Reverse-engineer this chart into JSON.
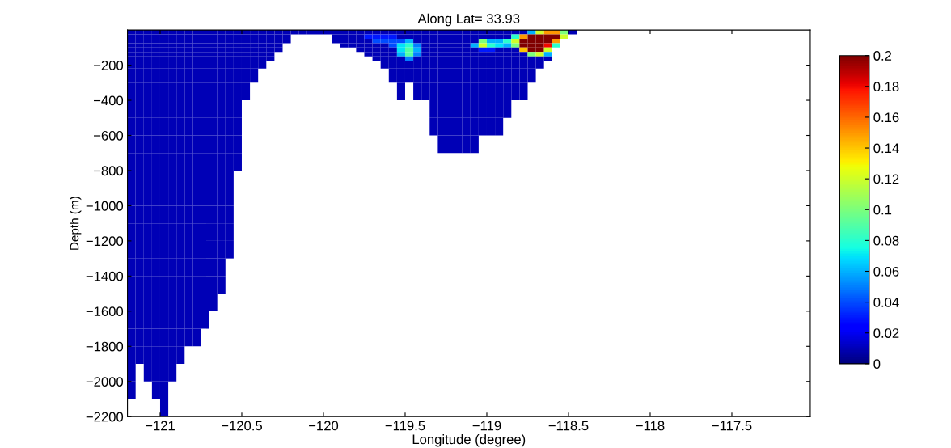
{
  "chart_data": {
    "type": "heatmap",
    "title": "Along Lat= 33.93",
    "xlabel": "Longitude (degree)",
    "ylabel": "Depth (m)",
    "x": [
      -121.175,
      -121.125,
      -121.075,
      -121.025,
      -120.975,
      -120.925,
      -120.875,
      -120.825,
      -120.775,
      -120.725,
      -120.675,
      -120.625,
      -120.575,
      -120.525,
      -120.475,
      -120.425,
      -120.375,
      -120.325,
      -120.275,
      -120.225,
      -120.175,
      -120.125,
      -120.075,
      -120.025,
      -119.975,
      -119.925,
      -119.875,
      -119.825,
      -119.775,
      -119.725,
      -119.675,
      -119.625,
      -119.575,
      -119.525,
      -119.475,
      -119.425,
      -119.375,
      -119.325,
      -119.275,
      -119.225,
      -119.175,
      -119.125,
      -119.075,
      -119.025,
      -118.975,
      -118.925,
      -118.875,
      -118.825,
      -118.775,
      -118.725,
      -118.675,
      -118.625,
      -118.575,
      -118.525,
      -118.475,
      -118.425,
      -118.375
    ],
    "y": [
      -12.5,
      -37.5,
      -62.5,
      -87.5,
      -112.5,
      -137.5,
      -162.5,
      -187.5,
      -250,
      -350,
      -450,
      -550,
      -650,
      -750,
      -850,
      -950,
      -1050,
      -1150,
      -1250,
      -1350,
      -1450,
      -1550,
      -1650,
      -1750,
      -1850,
      -1950,
      -2050,
      -2150
    ],
    "cells": [
      [
        0.01,
        0.01,
        0.01,
        0.01,
        0.01,
        0.01,
        0.01,
        0.01,
        0.01,
        0.01,
        0.01,
        0.01,
        0.01,
        0.01,
        0.01,
        0.01,
        0.01,
        0.01,
        0.01,
        0.01,
        0.01,
        0.01,
        0.01,
        0.01,
        0.01,
        0.01,
        0.01,
        0.01,
        0.01,
        0.01,
        0.01,
        0.01,
        0.01,
        0.01,
        0.01,
        0.01,
        0.01,
        0.01,
        0.01,
        0.01,
        0.01,
        0.01,
        0.01,
        0.01,
        0.01,
        0.01,
        0.01,
        0.01,
        0.01,
        0.06,
        0.12,
        0.15,
        0.15,
        0.1,
        0.01,
        null,
        null
      ],
      [
        0.01,
        0.01,
        0.01,
        0.01,
        0.01,
        0.01,
        0.01,
        0.01,
        0.01,
        0.01,
        0.01,
        0.01,
        0.01,
        0.01,
        0.01,
        0.01,
        0.01,
        0.01,
        0.01,
        0.01,
        null,
        null,
        null,
        null,
        null,
        0.01,
        0.01,
        0.01,
        0.01,
        0.03,
        0.03,
        0.03,
        0.03,
        0.01,
        0.01,
        0.01,
        0.01,
        0.01,
        0.01,
        0.01,
        0.01,
        0.01,
        0.01,
        0.01,
        0.01,
        0.01,
        0.01,
        0.08,
        0.15,
        0.2,
        0.2,
        0.2,
        0.2,
        0.12,
        null,
        null,
        null
      ],
      [
        0.01,
        0.01,
        0.01,
        0.01,
        0.01,
        0.01,
        0.01,
        0.01,
        0.01,
        0.01,
        0.01,
        0.01,
        0.01,
        0.01,
        0.01,
        0.01,
        0.01,
        0.01,
        0.01,
        0.01,
        null,
        null,
        null,
        null,
        null,
        0.01,
        0.01,
        0.01,
        0.01,
        0.01,
        0.04,
        0.04,
        0.04,
        0.04,
        0.06,
        0.01,
        0.01,
        0.01,
        0.01,
        0.01,
        0.01,
        0.01,
        0.01,
        0.1,
        0.06,
        0.06,
        0.08,
        0.12,
        0.2,
        0.2,
        0.2,
        0.2,
        0.15,
        null,
        null,
        null,
        null
      ],
      [
        0.01,
        0.01,
        0.01,
        0.01,
        0.01,
        0.01,
        0.01,
        0.01,
        0.01,
        0.01,
        0.01,
        0.01,
        0.01,
        0.01,
        0.01,
        0.01,
        0.01,
        0.01,
        0.01,
        null,
        null,
        null,
        null,
        null,
        null,
        null,
        0.01,
        0.01,
        0.01,
        0.01,
        0.01,
        0.01,
        0.04,
        0.07,
        0.08,
        0.05,
        0.01,
        0.01,
        0.01,
        0.01,
        0.01,
        0.01,
        0.06,
        0.12,
        0.08,
        0.07,
        0.06,
        0.1,
        0.2,
        0.2,
        0.2,
        0.18,
        0.08,
        null,
        null,
        null,
        null
      ],
      [
        0.01,
        0.01,
        0.01,
        0.01,
        0.01,
        0.01,
        0.01,
        0.01,
        0.01,
        0.01,
        0.01,
        0.01,
        0.01,
        0.01,
        0.01,
        0.01,
        0.01,
        0.01,
        0.01,
        null,
        null,
        null,
        null,
        null,
        null,
        null,
        null,
        null,
        0.01,
        0.01,
        0.01,
        0.01,
        0.01,
        0.07,
        0.09,
        0.06,
        0.01,
        0.01,
        0.01,
        0.01,
        0.01,
        0.01,
        0.01,
        0.03,
        0.03,
        0.01,
        0.01,
        0.01,
        0.14,
        0.2,
        0.2,
        0.12,
        null,
        null,
        null,
        null,
        null
      ],
      [
        0.01,
        0.01,
        0.01,
        0.01,
        0.01,
        0.01,
        0.01,
        0.01,
        0.01,
        0.01,
        0.01,
        0.01,
        0.01,
        0.01,
        0.01,
        0.01,
        0.01,
        0.01,
        null,
        null,
        null,
        null,
        null,
        null,
        null,
        null,
        null,
        null,
        null,
        0.01,
        0.01,
        0.01,
        0.01,
        0.06,
        0.09,
        0.05,
        0.01,
        0.01,
        0.01,
        0.01,
        0.01,
        0.01,
        0.01,
        0.01,
        0.01,
        0.01,
        0.01,
        0.01,
        0.01,
        0.1,
        0.12,
        0.06,
        null,
        null,
        null,
        null,
        null
      ],
      [
        0.01,
        0.01,
        0.01,
        0.01,
        0.01,
        0.01,
        0.01,
        0.01,
        0.01,
        0.01,
        0.01,
        0.01,
        0.01,
        0.01,
        0.01,
        0.01,
        0.01,
        0.01,
        null,
        null,
        null,
        null,
        null,
        null,
        null,
        null,
        null,
        null,
        null,
        null,
        0.01,
        0.01,
        0.01,
        0.01,
        0.05,
        0.01,
        0.01,
        0.01,
        0.01,
        0.01,
        0.01,
        0.01,
        0.01,
        0.01,
        0.01,
        0.01,
        0.01,
        0.01,
        0.01,
        0.01,
        0.01,
        0.01,
        null,
        null,
        null,
        null,
        null
      ],
      [
        0.01,
        0.01,
        0.01,
        0.01,
        0.01,
        0.01,
        0.01,
        0.01,
        0.01,
        0.01,
        0.01,
        0.01,
        0.01,
        0.01,
        0.01,
        0.01,
        0.01,
        null,
        null,
        null,
        null,
        null,
        null,
        null,
        null,
        null,
        null,
        null,
        null,
        null,
        null,
        0.01,
        0.01,
        0.01,
        0.01,
        0.01,
        0.01,
        0.01,
        0.01,
        0.01,
        0.01,
        0.01,
        0.01,
        0.01,
        0.01,
        0.01,
        0.01,
        0.01,
        0.01,
        0.01,
        0.01,
        null,
        null,
        null,
        null,
        null,
        null
      ],
      [
        0.01,
        0.01,
        0.01,
        0.01,
        0.01,
        0.01,
        0.01,
        0.01,
        0.01,
        0.01,
        0.01,
        0.01,
        0.01,
        0.01,
        0.01,
        0.01,
        null,
        null,
        null,
        null,
        null,
        null,
        null,
        null,
        null,
        null,
        null,
        null,
        null,
        null,
        null,
        null,
        0.01,
        0.01,
        0.01,
        0.01,
        0.01,
        0.01,
        0.01,
        0.01,
        0.01,
        0.01,
        0.01,
        0.01,
        0.01,
        0.01,
        0.01,
        0.01,
        0.01,
        0.01,
        null,
        null,
        null,
        null,
        null,
        null,
        null
      ],
      [
        0.01,
        0.01,
        0.01,
        0.01,
        0.01,
        0.01,
        0.01,
        0.01,
        0.01,
        0.01,
        0.01,
        0.01,
        0.01,
        0.01,
        0.01,
        null,
        null,
        null,
        null,
        null,
        null,
        null,
        null,
        null,
        null,
        null,
        null,
        null,
        null,
        null,
        null,
        null,
        null,
        0.01,
        null,
        0.01,
        0.01,
        0.01,
        0.01,
        0.01,
        0.01,
        0.01,
        0.01,
        0.01,
        0.01,
        0.01,
        0.01,
        0.01,
        0.01,
        null,
        null,
        null,
        null,
        null,
        null,
        null,
        null
      ],
      [
        0.01,
        0.01,
        0.01,
        0.01,
        0.01,
        0.01,
        0.01,
        0.01,
        0.01,
        0.01,
        0.01,
        0.01,
        0.01,
        0.01,
        null,
        null,
        null,
        null,
        null,
        null,
        null,
        null,
        null,
        null,
        null,
        null,
        null,
        null,
        null,
        null,
        null,
        null,
        null,
        null,
        null,
        null,
        null,
        0.01,
        0.01,
        0.01,
        0.01,
        0.01,
        0.01,
        0.01,
        0.01,
        0.01,
        0.01,
        null,
        null,
        null,
        null,
        null,
        null,
        null,
        null,
        null,
        null
      ],
      [
        0.01,
        0.01,
        0.01,
        0.01,
        0.01,
        0.01,
        0.01,
        0.01,
        0.01,
        0.01,
        0.01,
        0.01,
        0.01,
        0.01,
        null,
        null,
        null,
        null,
        null,
        null,
        null,
        null,
        null,
        null,
        null,
        null,
        null,
        null,
        null,
        null,
        null,
        null,
        null,
        null,
        null,
        null,
        null,
        0.01,
        0.01,
        0.01,
        0.01,
        0.01,
        0.01,
        0.01,
        0.01,
        0.01,
        null,
        null,
        null,
        null,
        null,
        null,
        null,
        null,
        null,
        null,
        null
      ],
      [
        0.01,
        0.01,
        0.01,
        0.01,
        0.01,
        0.01,
        0.01,
        0.01,
        0.01,
        0.01,
        0.01,
        0.01,
        0.01,
        0.01,
        null,
        null,
        null,
        null,
        null,
        null,
        null,
        null,
        null,
        null,
        null,
        null,
        null,
        null,
        null,
        null,
        null,
        null,
        null,
        null,
        null,
        null,
        null,
        null,
        0.01,
        0.01,
        0.01,
        0.01,
        0.01,
        null,
        null,
        null,
        null,
        null,
        null,
        null,
        null,
        null,
        null,
        null,
        null,
        null,
        null
      ],
      [
        0.01,
        0.01,
        0.01,
        0.01,
        0.01,
        0.01,
        0.01,
        0.01,
        0.01,
        0.01,
        0.01,
        0.01,
        0.01,
        0.01,
        null,
        null,
        null,
        null,
        null,
        null,
        null,
        null,
        null,
        null,
        null,
        null,
        null,
        null,
        null,
        null,
        null,
        null,
        null,
        null,
        null,
        null,
        null,
        null,
        null,
        null,
        null,
        null,
        null,
        null,
        null,
        null,
        null,
        null,
        null,
        null,
        null,
        null,
        null,
        null,
        null,
        null,
        null
      ],
      [
        0.01,
        0.01,
        0.01,
        0.01,
        0.01,
        0.01,
        0.01,
        0.01,
        0.01,
        0.01,
        0.01,
        0.01,
        0.01,
        null,
        null,
        null,
        null,
        null,
        null,
        null,
        null,
        null,
        null,
        null,
        null,
        null,
        null,
        null,
        null,
        null,
        null,
        null,
        null,
        null,
        null,
        null,
        null,
        null,
        null,
        null,
        null,
        null,
        null,
        null,
        null,
        null,
        null,
        null,
        null,
        null,
        null,
        null,
        null,
        null,
        null,
        null,
        null
      ],
      [
        0.01,
        0.01,
        0.01,
        0.01,
        0.01,
        0.01,
        0.01,
        0.01,
        0.01,
        0.01,
        0.01,
        0.01,
        0.01,
        null,
        null,
        null,
        null,
        null,
        null,
        null,
        null,
        null,
        null,
        null,
        null,
        null,
        null,
        null,
        null,
        null,
        null,
        null,
        null,
        null,
        null,
        null,
        null,
        null,
        null,
        null,
        null,
        null,
        null,
        null,
        null,
        null,
        null,
        null,
        null,
        null,
        null,
        null,
        null,
        null,
        null,
        null,
        null
      ],
      [
        0.01,
        0.01,
        0.01,
        0.01,
        0.01,
        0.01,
        0.01,
        0.01,
        0.01,
        0.01,
        0.01,
        0.01,
        0.01,
        null,
        null,
        null,
        null,
        null,
        null,
        null,
        null,
        null,
        null,
        null,
        null,
        null,
        null,
        null,
        null,
        null,
        null,
        null,
        null,
        null,
        null,
        null,
        null,
        null,
        null,
        null,
        null,
        null,
        null,
        null,
        null,
        null,
        null,
        null,
        null,
        null,
        null,
        null,
        null,
        null,
        null,
        null,
        null
      ],
      [
        0.01,
        0.01,
        0.01,
        0.01,
        0.01,
        0.01,
        0.01,
        0.01,
        0.01,
        0.01,
        0.01,
        0.01,
        0.01,
        null,
        null,
        null,
        null,
        null,
        null,
        null,
        null,
        null,
        null,
        null,
        null,
        null,
        null,
        null,
        null,
        null,
        null,
        null,
        null,
        null,
        null,
        null,
        null,
        null,
        null,
        null,
        null,
        null,
        null,
        null,
        null,
        null,
        null,
        null,
        null,
        null,
        null,
        null,
        null,
        null,
        null,
        null,
        null
      ],
      [
        0.01,
        0.01,
        0.01,
        0.01,
        0.01,
        0.01,
        0.01,
        0.01,
        0.01,
        0.01,
        0.01,
        0.01,
        0.01,
        null,
        null,
        null,
        null,
        null,
        null,
        null,
        null,
        null,
        null,
        null,
        null,
        null,
        null,
        null,
        null,
        null,
        null,
        null,
        null,
        null,
        null,
        null,
        null,
        null,
        null,
        null,
        null,
        null,
        null,
        null,
        null,
        null,
        null,
        null,
        null,
        null,
        null,
        null,
        null,
        null,
        null,
        null,
        null
      ],
      [
        0.01,
        0.01,
        0.01,
        0.01,
        0.01,
        0.01,
        0.01,
        0.01,
        0.01,
        0.01,
        0.01,
        0.01,
        null,
        null,
        null,
        null,
        null,
        null,
        null,
        null,
        null,
        null,
        null,
        null,
        null,
        null,
        null,
        null,
        null,
        null,
        null,
        null,
        null,
        null,
        null,
        null,
        null,
        null,
        null,
        null,
        null,
        null,
        null,
        null,
        null,
        null,
        null,
        null,
        null,
        null,
        null,
        null,
        null,
        null,
        null,
        null,
        null
      ],
      [
        0.01,
        0.01,
        0.01,
        0.01,
        0.01,
        0.01,
        0.01,
        0.01,
        0.01,
        0.01,
        0.01,
        0.01,
        null,
        null,
        null,
        null,
        null,
        null,
        null,
        null,
        null,
        null,
        null,
        null,
        null,
        null,
        null,
        null,
        null,
        null,
        null,
        null,
        null,
        null,
        null,
        null,
        null,
        null,
        null,
        null,
        null,
        null,
        null,
        null,
        null,
        null,
        null,
        null,
        null,
        null,
        null,
        null,
        null,
        null,
        null,
        null,
        null
      ],
      [
        0.01,
        0.01,
        0.01,
        0.01,
        0.01,
        0.01,
        0.01,
        0.01,
        0.01,
        0.01,
        0.01,
        null,
        null,
        null,
        null,
        null,
        null,
        null,
        null,
        null,
        null,
        null,
        null,
        null,
        null,
        null,
        null,
        null,
        null,
        null,
        null,
        null,
        null,
        null,
        null,
        null,
        null,
        null,
        null,
        null,
        null,
        null,
        null,
        null,
        null,
        null,
        null,
        null,
        null,
        null,
        null,
        null,
        null,
        null,
        null,
        null,
        null
      ],
      [
        0.01,
        0.01,
        0.01,
        0.01,
        0.01,
        0.01,
        0.01,
        0.01,
        0.01,
        0.01,
        null,
        null,
        null,
        null,
        null,
        null,
        null,
        null,
        null,
        null,
        null,
        null,
        null,
        null,
        null,
        null,
        null,
        null,
        null,
        null,
        null,
        null,
        null,
        null,
        null,
        null,
        null,
        null,
        null,
        null,
        null,
        null,
        null,
        null,
        null,
        null,
        null,
        null,
        null,
        null,
        null,
        null,
        null,
        null,
        null,
        null,
        null
      ],
      [
        0.01,
        0.01,
        0.01,
        0.01,
        0.01,
        0.01,
        0.01,
        0.01,
        0.01,
        null,
        null,
        null,
        null,
        null,
        null,
        null,
        null,
        null,
        null,
        null,
        null,
        null,
        null,
        null,
        null,
        null,
        null,
        null,
        null,
        null,
        null,
        null,
        null,
        null,
        null,
        null,
        null,
        null,
        null,
        null,
        null,
        null,
        null,
        null,
        null,
        null,
        null,
        null,
        null,
        null,
        null,
        null,
        null,
        null,
        null,
        null,
        null
      ],
      [
        0.01,
        0.01,
        0.01,
        0.01,
        0.01,
        0.01,
        0.01,
        null,
        null,
        null,
        null,
        null,
        null,
        null,
        null,
        null,
        null,
        null,
        null,
        null,
        null,
        null,
        null,
        null,
        null,
        null,
        null,
        null,
        null,
        null,
        null,
        null,
        null,
        null,
        null,
        null,
        null,
        null,
        null,
        null,
        null,
        null,
        null,
        null,
        null,
        null,
        null,
        null,
        null,
        null,
        null,
        null,
        null,
        null,
        null,
        null,
        null
      ],
      [
        0.01,
        null,
        0.01,
        0.01,
        0.01,
        0.01,
        null,
        null,
        null,
        null,
        null,
        null,
        null,
        null,
        null,
        null,
        null,
        null,
        null,
        null,
        null,
        null,
        null,
        null,
        null,
        null,
        null,
        null,
        null,
        null,
        null,
        null,
        null,
        null,
        null,
        null,
        null,
        null,
        null,
        null,
        null,
        null,
        null,
        null,
        null,
        null,
        null,
        null,
        null,
        null,
        null,
        null,
        null,
        null,
        null,
        null,
        null
      ],
      [
        0.01,
        null,
        null,
        0.01,
        0.01,
        null,
        null,
        null,
        null,
        null,
        null,
        null,
        null,
        null,
        null,
        null,
        null,
        null,
        null,
        null,
        null,
        null,
        null,
        null,
        null,
        null,
        null,
        null,
        null,
        null,
        null,
        null,
        null,
        null,
        null,
        null,
        null,
        null,
        null,
        null,
        null,
        null,
        null,
        null,
        null,
        null,
        null,
        null,
        null,
        null,
        null,
        null,
        null,
        null,
        null,
        null,
        null
      ],
      [
        null,
        null,
        null,
        null,
        0.01,
        null,
        null,
        null,
        null,
        null,
        null,
        null,
        null,
        null,
        null,
        null,
        null,
        null,
        null,
        null,
        null,
        null,
        null,
        null,
        null,
        null,
        null,
        null,
        null,
        null,
        null,
        null,
        null,
        null,
        null,
        null,
        null,
        null,
        null,
        null,
        null,
        null,
        null,
        null,
        null,
        null,
        null,
        null,
        null,
        null,
        null,
        null,
        null,
        null,
        null,
        null,
        null
      ]
    ],
    "xlim": [
      -121.2,
      -117.02
    ],
    "ylim": [
      -2200,
      0
    ],
    "xticks": [
      -121,
      -120.5,
      -120,
      -119.5,
      -119,
      -118.5,
      -118,
      -117.5
    ],
    "yticks": [
      -2200,
      -2000,
      -1800,
      -1600,
      -1400,
      -1200,
      -1000,
      -800,
      -600,
      -400,
      -200
    ],
    "clim": [
      0,
      0.2
    ],
    "cticks": [
      0,
      0.02,
      0.04,
      0.06,
      0.08,
      0.1,
      0.12,
      0.14,
      0.16,
      0.18,
      0.2
    ]
  }
}
